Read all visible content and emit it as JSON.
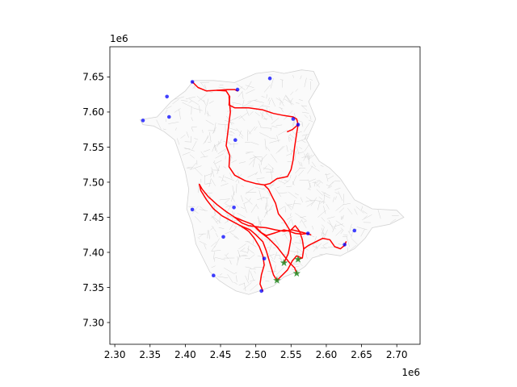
{
  "chart_data": {
    "type": "scatter",
    "title": "",
    "xlabel": "",
    "ylabel": "",
    "x_offset_label": "1e6",
    "y_offset_label": "1e6",
    "xlim": [
      2.293,
      2.733
    ],
    "ylim": [
      7.269,
      7.693
    ],
    "x_ticks": [
      {
        "value": 2.3,
        "label": "2.30"
      },
      {
        "value": 2.35,
        "label": "2.35"
      },
      {
        "value": 2.4,
        "label": "2.40"
      },
      {
        "value": 2.45,
        "label": "2.45"
      },
      {
        "value": 2.5,
        "label": "2.50"
      },
      {
        "value": 2.55,
        "label": "2.55"
      },
      {
        "value": 2.6,
        "label": "2.60"
      },
      {
        "value": 2.65,
        "label": "2.65"
      },
      {
        "value": 2.7,
        "label": "2.70"
      }
    ],
    "y_ticks": [
      {
        "value": 7.3,
        "label": "7.30"
      },
      {
        "value": 7.35,
        "label": "7.35"
      },
      {
        "value": 7.4,
        "label": "7.40"
      },
      {
        "value": 7.45,
        "label": "7.45"
      },
      {
        "value": 7.5,
        "label": "7.50"
      },
      {
        "value": 7.55,
        "label": "7.55"
      },
      {
        "value": 7.6,
        "label": "7.60"
      },
      {
        "value": 7.65,
        "label": "7.65"
      }
    ],
    "grid": false,
    "colors": {
      "network": "#d3d3d3",
      "routes": "#ff0000",
      "sites": "#0000ff",
      "depots": "#228b22",
      "axes": "#000000"
    },
    "road_network_outline": [
      [
        2.336,
        7.589
      ],
      [
        2.36,
        7.593
      ],
      [
        2.38,
        7.615
      ],
      [
        2.4,
        7.63
      ],
      [
        2.412,
        7.645
      ],
      [
        2.44,
        7.645
      ],
      [
        2.47,
        7.642
      ],
      [
        2.5,
        7.655
      ],
      [
        2.525,
        7.658
      ],
      [
        2.54,
        7.655
      ],
      [
        2.565,
        7.66
      ],
      [
        2.582,
        7.658
      ],
      [
        2.59,
        7.64
      ],
      [
        2.575,
        7.615
      ],
      [
        2.585,
        7.59
      ],
      [
        2.572,
        7.56
      ],
      [
        2.58,
        7.545
      ],
      [
        2.59,
        7.53
      ],
      [
        2.605,
        7.52
      ],
      [
        2.62,
        7.505
      ],
      [
        2.64,
        7.475
      ],
      [
        2.665,
        7.462
      ],
      [
        2.7,
        7.46
      ],
      [
        2.71,
        7.45
      ],
      [
        2.69,
        7.44
      ],
      [
        2.665,
        7.435
      ],
      [
        2.655,
        7.42
      ],
      [
        2.64,
        7.405
      ],
      [
        2.62,
        7.395
      ],
      [
        2.6,
        7.398
      ],
      [
        2.58,
        7.392
      ],
      [
        2.57,
        7.38
      ],
      [
        2.558,
        7.372
      ],
      [
        2.54,
        7.365
      ],
      [
        2.525,
        7.352
      ],
      [
        2.505,
        7.345
      ],
      [
        2.49,
        7.34
      ],
      [
        2.472,
        7.345
      ],
      [
        2.46,
        7.352
      ],
      [
        2.448,
        7.36
      ],
      [
        2.435,
        7.372
      ],
      [
        2.425,
        7.392
      ],
      [
        2.415,
        7.412
      ],
      [
        2.41,
        7.44
      ],
      [
        2.402,
        7.462
      ],
      [
        2.405,
        7.49
      ],
      [
        2.4,
        7.515
      ],
      [
        2.392,
        7.54
      ],
      [
        2.385,
        7.56
      ],
      [
        2.37,
        7.572
      ],
      [
        2.355,
        7.58
      ],
      [
        2.34,
        7.582
      ],
      [
        2.336,
        7.589
      ]
    ],
    "routes": [
      {
        "points": [
          [
            2.41,
            7.643
          ],
          [
            2.418,
            7.635
          ],
          [
            2.43,
            7.63
          ],
          [
            2.445,
            7.631
          ],
          [
            2.46,
            7.632
          ],
          [
            2.47,
            7.632
          ],
          [
            2.474,
            7.63
          ]
        ]
      },
      {
        "points": [
          [
            2.445,
            7.631
          ],
          [
            2.458,
            7.63
          ],
          [
            2.463,
            7.622
          ],
          [
            2.462,
            7.61
          ],
          [
            2.47,
            7.606
          ],
          [
            2.49,
            7.606
          ],
          [
            2.51,
            7.603
          ],
          [
            2.525,
            7.598
          ],
          [
            2.54,
            7.595
          ],
          [
            2.553,
            7.593
          ],
          [
            2.558,
            7.59
          ],
          [
            2.56,
            7.582
          ],
          [
            2.552,
            7.575
          ],
          [
            2.545,
            7.572
          ]
        ]
      },
      {
        "points": [
          [
            2.462,
            7.622
          ],
          [
            2.464,
            7.6
          ],
          [
            2.462,
            7.585
          ],
          [
            2.46,
            7.568
          ],
          [
            2.458,
            7.552
          ],
          [
            2.463,
            7.538
          ],
          [
            2.462,
            7.522
          ],
          [
            2.47,
            7.51
          ],
          [
            2.485,
            7.502
          ],
          [
            2.5,
            7.498
          ],
          [
            2.512,
            7.496
          ],
          [
            2.52,
            7.498
          ],
          [
            2.53,
            7.505
          ],
          [
            2.545,
            7.508
          ],
          [
            2.55,
            7.518
          ],
          [
            2.553,
            7.532
          ],
          [
            2.555,
            7.55
          ],
          [
            2.558,
            7.57
          ],
          [
            2.56,
            7.582
          ]
        ]
      },
      {
        "points": [
          [
            2.512,
            7.496
          ],
          [
            2.518,
            7.49
          ],
          [
            2.523,
            7.48
          ],
          [
            2.528,
            7.47
          ],
          [
            2.532,
            7.455
          ],
          [
            2.54,
            7.445
          ],
          [
            2.548,
            7.432
          ],
          [
            2.55,
            7.42
          ],
          [
            2.548,
            7.408
          ],
          [
            2.546,
            7.398
          ],
          [
            2.54,
            7.385
          ]
        ]
      },
      {
        "points": [
          [
            2.42,
            7.497
          ],
          [
            2.424,
            7.49
          ],
          [
            2.432,
            7.48
          ],
          [
            2.445,
            7.468
          ],
          [
            2.458,
            7.458
          ],
          [
            2.47,
            7.45
          ],
          [
            2.48,
            7.442
          ],
          [
            2.49,
            7.438
          ],
          [
            2.505,
            7.436
          ],
          [
            2.515,
            7.435
          ],
          [
            2.528,
            7.432
          ],
          [
            2.54,
            7.43
          ],
          [
            2.552,
            7.432
          ],
          [
            2.56,
            7.43
          ],
          [
            2.568,
            7.428
          ],
          [
            2.578,
            7.425
          ]
        ]
      },
      {
        "points": [
          [
            2.42,
            7.497
          ],
          [
            2.422,
            7.488
          ],
          [
            2.43,
            7.475
          ],
          [
            2.44,
            7.462
          ],
          [
            2.452,
            7.452
          ],
          [
            2.465,
            7.445
          ],
          [
            2.478,
            7.438
          ],
          [
            2.49,
            7.43
          ],
          [
            2.498,
            7.42
          ],
          [
            2.505,
            7.408
          ],
          [
            2.51,
            7.395
          ],
          [
            2.512,
            7.382
          ],
          [
            2.508,
            7.368
          ],
          [
            2.506,
            7.355
          ],
          [
            2.51,
            7.345
          ]
        ]
      },
      {
        "points": [
          [
            2.47,
            7.45
          ],
          [
            2.482,
            7.445
          ],
          [
            2.495,
            7.44
          ],
          [
            2.505,
            7.43
          ],
          [
            2.518,
            7.42
          ],
          [
            2.53,
            7.408
          ],
          [
            2.54,
            7.395
          ],
          [
            2.548,
            7.385
          ],
          [
            2.555,
            7.378
          ],
          [
            2.558,
            7.37
          ]
        ]
      },
      {
        "points": [
          [
            2.478,
            7.438
          ],
          [
            2.492,
            7.432
          ],
          [
            2.5,
            7.425
          ],
          [
            2.51,
            7.415
          ],
          [
            2.515,
            7.402
          ],
          [
            2.52,
            7.385
          ],
          [
            2.525,
            7.368
          ],
          [
            2.53,
            7.36
          ],
          [
            2.535,
            7.365
          ],
          [
            2.545,
            7.375
          ],
          [
            2.552,
            7.388
          ],
          [
            2.558,
            7.395
          ],
          [
            2.565,
            7.392
          ]
        ]
      },
      {
        "points": [
          [
            2.55,
            7.432
          ],
          [
            2.556,
            7.438
          ],
          [
            2.562,
            7.43
          ],
          [
            2.566,
            7.418
          ],
          [
            2.568,
            7.405
          ],
          [
            2.566,
            7.392
          ],
          [
            2.56,
            7.39
          ]
        ]
      },
      {
        "points": [
          [
            2.568,
            7.405
          ],
          [
            2.575,
            7.41
          ],
          [
            2.585,
            7.415
          ],
          [
            2.595,
            7.42
          ],
          [
            2.605,
            7.418
          ],
          [
            2.612,
            7.408
          ],
          [
            2.62,
            7.405
          ],
          [
            2.626,
            7.41
          ],
          [
            2.628,
            7.415
          ]
        ]
      },
      {
        "points": [
          [
            2.5,
            7.436
          ],
          [
            2.508,
            7.428
          ],
          [
            2.515,
            7.424
          ],
          [
            2.528,
            7.428
          ],
          [
            2.54,
            7.432
          ],
          [
            2.548,
            7.43
          ],
          [
            2.556,
            7.427
          ],
          [
            2.566,
            7.426
          ],
          [
            2.574,
            7.427
          ]
        ]
      }
    ],
    "sites": [
      [
        2.41,
        7.643
      ],
      [
        2.474,
        7.632
      ],
      [
        2.52,
        7.648
      ],
      [
        2.374,
        7.622
      ],
      [
        2.377,
        7.593
      ],
      [
        2.34,
        7.588
      ],
      [
        2.553,
        7.59
      ],
      [
        2.56,
        7.582
      ],
      [
        2.471,
        7.56
      ],
      [
        2.41,
        7.461
      ],
      [
        2.469,
        7.464
      ],
      [
        2.454,
        7.422
      ],
      [
        2.574,
        7.427
      ],
      [
        2.64,
        7.431
      ],
      [
        2.626,
        7.411
      ],
      [
        2.512,
        7.391
      ],
      [
        2.44,
        7.367
      ],
      [
        2.508,
        7.345
      ]
    ],
    "depots": [
      [
        2.54,
        7.385
      ],
      [
        2.56,
        7.39
      ],
      [
        2.558,
        7.37
      ],
      [
        2.53,
        7.36
      ]
    ]
  }
}
